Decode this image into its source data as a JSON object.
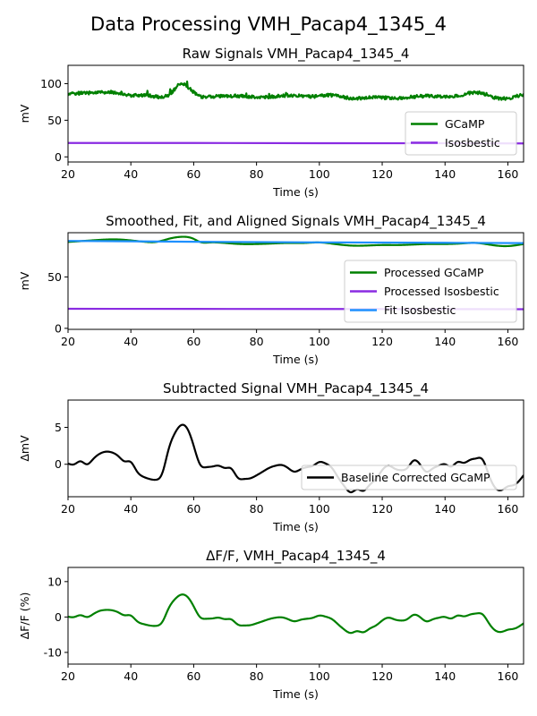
{
  "figure": {
    "suptitle": "Data Processing VMH_Pacap4_1345_4"
  },
  "chart_data": [
    {
      "type": "line",
      "title": "Raw Signals VMH_Pacap4_1345_4",
      "xlabel": "Time (s)",
      "ylabel": "mV",
      "xlim": [
        20,
        165
      ],
      "ylim": [
        -7,
        125
      ],
      "xticks": [
        20,
        40,
        60,
        80,
        100,
        120,
        140,
        160
      ],
      "yticks": [
        0,
        50,
        100
      ],
      "legend_loc": "lower right",
      "series": [
        {
          "name": "GCaMP",
          "color": "#008000",
          "noise": 2.2,
          "x": [
            20,
            25,
            30,
            35,
            40,
            45,
            50,
            53,
            56,
            59,
            62,
            65,
            70,
            75,
            80,
            85,
            90,
            95,
            100,
            105,
            110,
            115,
            120,
            125,
            130,
            135,
            140,
            145,
            150,
            155,
            160,
            163,
            165
          ],
          "y": [
            86,
            87,
            88,
            88,
            84,
            84,
            82,
            88,
            100,
            92,
            83,
            82,
            83,
            83,
            82,
            82,
            84,
            83,
            83,
            84,
            80,
            81,
            81,
            80,
            82,
            83,
            82,
            84,
            88,
            82,
            80,
            83,
            85
          ]
        },
        {
          "name": "Isosbestic",
          "color": "#8a2be2",
          "noise": 0,
          "x": [
            20,
            60,
            100,
            140,
            165
          ],
          "y": [
            19,
            19,
            18.7,
            18.6,
            18.4
          ]
        }
      ]
    },
    {
      "type": "line",
      "title": "Smoothed, Fit, and Aligned Signals VMH_Pacap4_1345_4",
      "xlabel": "Time (s)",
      "ylabel": "mV",
      "xlim": [
        20,
        165
      ],
      "ylim": [
        -1,
        93
      ],
      "xticks": [
        20,
        40,
        60,
        80,
        100,
        120,
        140,
        160
      ],
      "yticks": [
        0,
        50
      ],
      "legend_loc": "lower right",
      "series": [
        {
          "name": "Processed GCaMP",
          "color": "#008000",
          "noise": 0,
          "x": [
            20,
            25,
            30,
            35,
            40,
            45,
            48,
            52,
            56,
            60,
            62,
            65,
            70,
            75,
            80,
            85,
            90,
            95,
            100,
            105,
            110,
            115,
            120,
            125,
            130,
            135,
            140,
            145,
            150,
            155,
            160,
            165
          ],
          "y": [
            84,
            85,
            86,
            86.5,
            85.5,
            84,
            84,
            87,
            89,
            87,
            84,
            83.5,
            83,
            82,
            82,
            82.5,
            83,
            83,
            83.5,
            82,
            80.5,
            80.5,
            81,
            81,
            81.5,
            82,
            82,
            82.5,
            83,
            81,
            80,
            82
          ]
        },
        {
          "name": "Processed Isosbestic",
          "color": "#8a2be2",
          "noise": 0,
          "x": [
            20,
            60,
            100,
            140,
            165
          ],
          "y": [
            19,
            18.9,
            18.8,
            18.7,
            18.6
          ]
        },
        {
          "name": "Fit Isosbestic",
          "color": "#1e90ff",
          "noise": 0,
          "x": [
            20,
            60,
            100,
            140,
            165
          ],
          "y": [
            85,
            84.2,
            83.6,
            83.2,
            82.9
          ]
        }
      ]
    },
    {
      "type": "line",
      "title": "Subtracted Signal VMH_Pacap4_1345_4",
      "xlabel": "Time (s)",
      "ylabel": "ΔmV",
      "xlim": [
        20,
        165
      ],
      "ylim": [
        -4.4,
        8.7
      ],
      "xticks": [
        20,
        40,
        60,
        80,
        100,
        120,
        140,
        160
      ],
      "yticks": [
        0,
        5
      ],
      "legend_loc": "lower right",
      "series": [
        {
          "name": "Baseline Corrected GCaMP",
          "color": "#000000",
          "noise": 0,
          "x": [
            20,
            22,
            24,
            26,
            28,
            30,
            32,
            34,
            36,
            38,
            40,
            42,
            44,
            46,
            48,
            50,
            52,
            54,
            56,
            58,
            60,
            62,
            64,
            66,
            68,
            70,
            72,
            74,
            76,
            78,
            80,
            82,
            84,
            86,
            88,
            90,
            92,
            94,
            96,
            98,
            100,
            102,
            104,
            106,
            108,
            110,
            112,
            114,
            116,
            118,
            120,
            122,
            124,
            126,
            128,
            130,
            132,
            134,
            136,
            138,
            140,
            142,
            144,
            146,
            148,
            150,
            152,
            154,
            156,
            158,
            160,
            162,
            165
          ],
          "y": [
            0.1,
            0.0,
            0.4,
            0.0,
            0.7,
            1.4,
            1.7,
            1.6,
            1.1,
            0.4,
            0.3,
            -1.0,
            -1.7,
            -2.0,
            -2.1,
            -1.2,
            2.0,
            4.2,
            5.3,
            4.8,
            2.5,
            0.0,
            -0.4,
            -0.3,
            -0.2,
            -0.5,
            -0.6,
            -1.8,
            -2.0,
            -1.9,
            -1.5,
            -1.0,
            -0.5,
            -0.2,
            -0.1,
            -0.5,
            -1.0,
            -0.7,
            -0.4,
            -0.2,
            0.3,
            0.1,
            -0.5,
            -1.8,
            -3.0,
            -3.8,
            -3.4,
            -3.6,
            -2.8,
            -2.0,
            -0.8,
            -0.2,
            -0.6,
            -0.8,
            -0.5,
            0.5,
            0.0,
            -1.0,
            -0.6,
            -0.2,
            0.0,
            -0.3,
            0.3,
            0.2,
            0.6,
            0.8,
            0.6,
            -1.5,
            -3.2,
            -3.5,
            -3.0,
            -2.8,
            -1.5
          ]
        }
      ]
    },
    {
      "type": "line",
      "title": "ΔF/F, VMH_Pacap4_1345_4",
      "xlabel": "Time (s)",
      "ylabel": "ΔF/F (%)",
      "xlim": [
        20,
        165
      ],
      "ylim": [
        -13.3,
        14
      ],
      "xticks": [
        20,
        40,
        60,
        80,
        100,
        120,
        140,
        160
      ],
      "yticks": [
        -10,
        0,
        10
      ],
      "series": [
        {
          "name": "ΔF/F",
          "color": "#008000",
          "noise": 0,
          "x": [
            20,
            22,
            24,
            26,
            28,
            30,
            32,
            34,
            36,
            38,
            40,
            42,
            44,
            46,
            48,
            50,
            52,
            54,
            56,
            58,
            60,
            62,
            64,
            66,
            68,
            70,
            72,
            74,
            76,
            78,
            80,
            82,
            84,
            86,
            88,
            90,
            92,
            94,
            96,
            98,
            100,
            102,
            104,
            106,
            108,
            110,
            112,
            114,
            116,
            118,
            120,
            122,
            124,
            126,
            128,
            130,
            132,
            134,
            136,
            138,
            140,
            142,
            144,
            146,
            148,
            150,
            152,
            154,
            156,
            158,
            160,
            162,
            165
          ],
          "y": [
            0.1,
            0.0,
            0.5,
            0.0,
            0.8,
            1.7,
            2.0,
            1.9,
            1.3,
            0.5,
            0.4,
            -1.2,
            -2.0,
            -2.4,
            -2.5,
            -1.4,
            2.4,
            5.0,
            6.3,
            5.7,
            3.0,
            0.0,
            -0.5,
            -0.4,
            -0.2,
            -0.6,
            -0.7,
            -2.1,
            -2.4,
            -2.3,
            -1.8,
            -1.2,
            -0.6,
            -0.2,
            -0.1,
            -0.6,
            -1.2,
            -0.8,
            -0.5,
            -0.2,
            0.4,
            0.1,
            -0.6,
            -2.1,
            -3.6,
            -4.5,
            -4.0,
            -4.3,
            -3.3,
            -2.4,
            -1.0,
            -0.2,
            -0.7,
            -1.0,
            -0.6,
            0.6,
            0.0,
            -1.2,
            -0.7,
            -0.2,
            0.0,
            -0.4,
            0.4,
            0.2,
            0.7,
            1.0,
            0.7,
            -1.8,
            -3.8,
            -4.2,
            -3.6,
            -3.3,
            -1.8
          ]
        }
      ]
    }
  ]
}
